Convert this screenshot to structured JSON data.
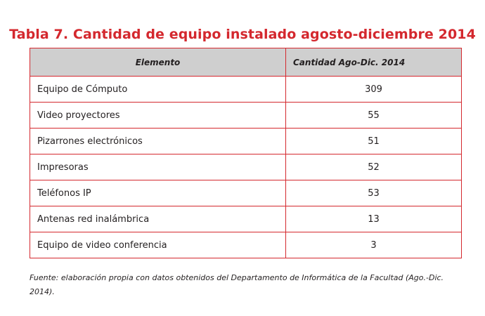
{
  "title": "Tabla 7. Cantidad de equipo instalado agosto-diciembre 2014",
  "table": {
    "headers": [
      "Elemento",
      "Cantidad Ago-Dic. 2014"
    ],
    "rows": [
      {
        "item": "Equipo de Cómputo",
        "qty": "309"
      },
      {
        "item": "Video proyectores",
        "qty": "55"
      },
      {
        "item": "Pizarrones electrónicos",
        "qty": "51"
      },
      {
        "item": "Impresoras",
        "qty": "52"
      },
      {
        "item": "Teléfonos IP",
        "qty": "53"
      },
      {
        "item": "Antenas red inalámbrica",
        "qty": "13"
      },
      {
        "item": "Equipo de video conferencia",
        "qty": "3"
      }
    ]
  },
  "source_note": "Fuente: elaboración propia con datos obtenidos del Departamento de Informática de la Facultad (Ago.-Dic. 2014).",
  "colors": {
    "accent": "#d4282e",
    "header_bg": "#cfcfcf",
    "text": "#231f20"
  }
}
